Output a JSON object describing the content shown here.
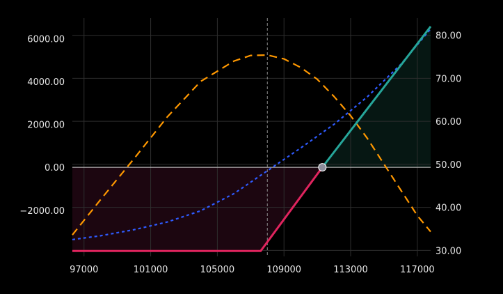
{
  "chart_data": {
    "type": "line",
    "title": "",
    "xlabel": "",
    "ylabel": "",
    "y2label": "",
    "grid": true,
    "legend": "none",
    "xlim": [
      96300,
      117800
    ],
    "ylim": [
      -4150,
      6950
    ],
    "y2lim": [
      28.6,
      84.0
    ],
    "x_ticks": [
      97000,
      101000,
      105000,
      109000,
      113000,
      117000
    ],
    "x_tick_labels": [
      "97000",
      "101000",
      "105000",
      "109000",
      "113000",
      "117000"
    ],
    "y_ticks": [
      6000,
      4000,
      2000,
      0,
      -2000
    ],
    "y_tick_labels": [
      "6000.00",
      "4000.00",
      "2000.00",
      "0.00",
      "−2000.00"
    ],
    "y2_ticks": [
      80,
      70,
      60,
      50,
      40,
      30
    ],
    "y2_tick_labels": [
      "80.00",
      "70.00",
      "60.00",
      "50.00",
      "40.00",
      "30.00"
    ],
    "vline_x": 108000,
    "breakeven": {
      "x": 111300,
      "y": 0
    },
    "series": [
      {
        "axis": "left",
        "style": "solid",
        "color_loss": "#e0245e",
        "color_profit": "#26a69a",
        "x": [
          96300,
          107600,
          111300,
          117800
        ],
        "y": [
          -3900,
          -3900,
          0,
          6560
        ]
      },
      {
        "axis": "left",
        "style": "dashed",
        "color": "#ff9800",
        "x": [
          96300,
          98000,
          100000,
          102000,
          104000,
          106000,
          107000,
          108000,
          109000,
          110000,
          111000,
          112000,
          113000,
          114000,
          115000,
          116000,
          117000,
          117800
        ],
        "y": [
          -3150,
          -1500,
          400,
          2350,
          4000,
          4950,
          5210,
          5230,
          5050,
          4650,
          4100,
          3300,
          2400,
          1350,
          150,
          -1050,
          -2250,
          -3000
        ]
      },
      {
        "axis": "right",
        "style": "dotted",
        "color": "#2f5bff",
        "x": [
          96300,
          98000,
          100000,
          102000,
          104000,
          106000,
          108000,
          110000,
          112000,
          114000,
          116000,
          117800
        ],
        "y": [
          32.5,
          33.4,
          34.8,
          36.6,
          39.2,
          43.2,
          48.5,
          53.8,
          59.3,
          65.7,
          73.2,
          81.5
        ]
      }
    ],
    "colors": {
      "loss_fill": "#1c0610",
      "profit_fill": "#061713",
      "zero_line": "#cfcfcf",
      "vline": "#8a8a8a",
      "marker": "#8c8c9a"
    }
  }
}
